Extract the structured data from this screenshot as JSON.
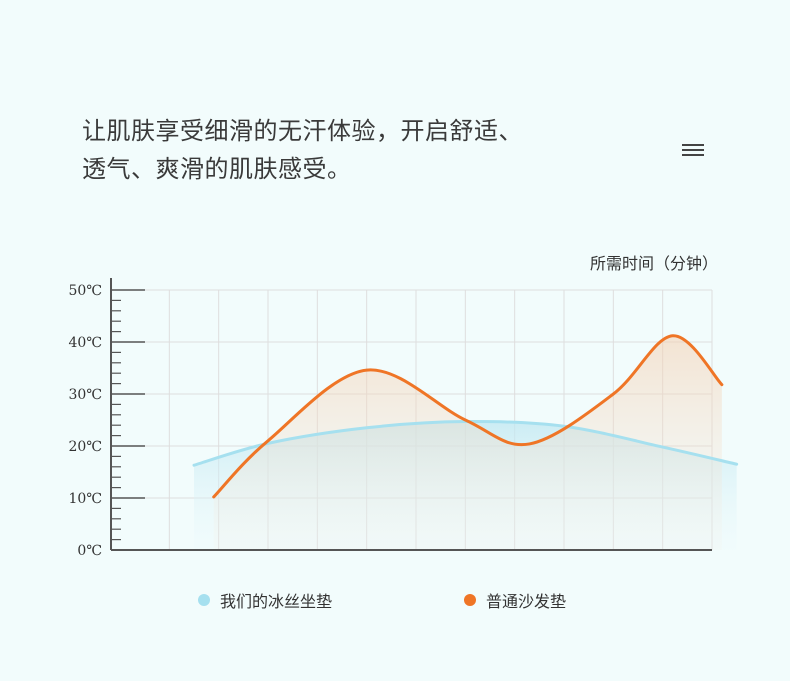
{
  "headline": {
    "line1": "让肌肤享受细滑的无汗体验，开启舒适、",
    "line2": "透气、爽滑的肌肤感受。"
  },
  "menu_icon": "hamburger-menu-icon",
  "colors": {
    "background": "#f2fcfc",
    "ice_series": "#a6e0ef",
    "sofa_series": "#ef7526",
    "grid": "#dedede",
    "axis": "#555555"
  },
  "chart_data": {
    "type": "line",
    "x_unit_label": "所需时间（分钟）",
    "y_tick_labels": [
      "0℃",
      "10℃",
      "20℃",
      "30℃",
      "40℃",
      "50℃"
    ],
    "ylim": [
      0,
      50
    ],
    "x_range": [
      0,
      12
    ],
    "grid": true,
    "legend_position": "bottom",
    "series": [
      {
        "name": "我们的冰丝坐垫",
        "color": "#a6e0ef",
        "points": [
          [
            1.5,
            16.3
          ],
          [
            3,
            20.5
          ],
          [
            5,
            23.5
          ],
          [
            7,
            24.7
          ],
          [
            9,
            23.8
          ],
          [
            11,
            19.8
          ],
          [
            12.5,
            16.5
          ]
        ]
      },
      {
        "name": "普通沙发垫",
        "color": "#ef7526",
        "points": [
          [
            1.9,
            10.2
          ],
          [
            3,
            21
          ],
          [
            5,
            34.6
          ],
          [
            7,
            25
          ],
          [
            8.3,
            20.4
          ],
          [
            10,
            30
          ],
          [
            11.2,
            41.2
          ],
          [
            12.2,
            31.8
          ]
        ]
      }
    ]
  }
}
